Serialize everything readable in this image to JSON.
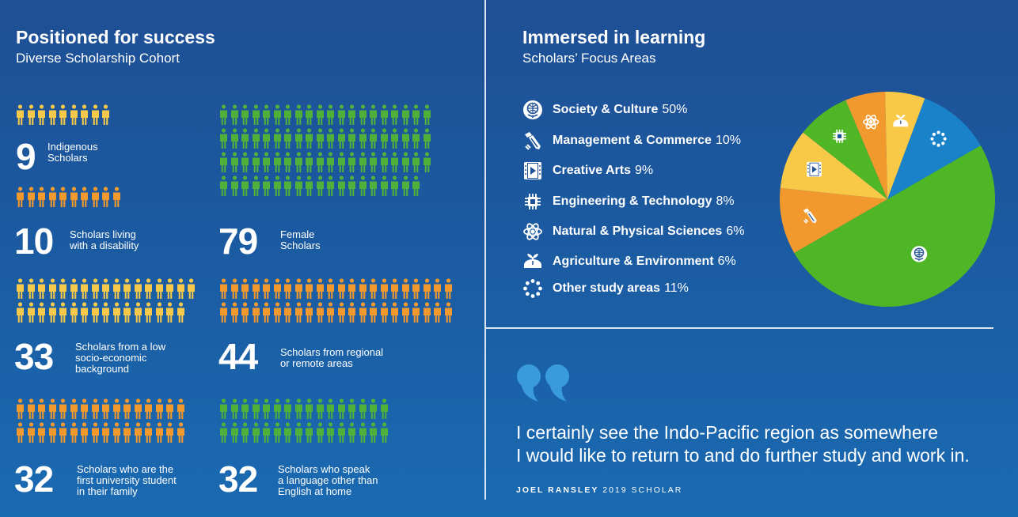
{
  "left_panel": {
    "title": "Positioned for success",
    "subtitle": "Diverse Scholarship Cohort",
    "stats": [
      {
        "number": "9",
        "label_line1": "Indigenous",
        "label_line2": "Scholars",
        "label_line3": "",
        "count": 9,
        "color": "#f6c94a"
      },
      {
        "number": "10",
        "label_line1": "Scholars living",
        "label_line2": "with a disability",
        "label_line3": "",
        "count": 10,
        "color": "#f2992e"
      },
      {
        "number": "79",
        "label_line1": "Female",
        "label_line2": "Scholars",
        "label_line3": "",
        "count": 79,
        "color": "#4fb03a"
      },
      {
        "number": "33",
        "label_line1": "Scholars from a low",
        "label_line2": "socio-economic",
        "label_line3": "background",
        "count": 33,
        "color": "#f6c94a"
      },
      {
        "number": "44",
        "label_line1": "Scholars from regional",
        "label_line2": "or remote areas",
        "label_line3": "",
        "count": 44,
        "color": "#f2992e"
      },
      {
        "number": "32",
        "label_line1": "Scholars who are the",
        "label_line2": "first university student",
        "label_line3": "in their family",
        "count": 32,
        "color": "#f2992e"
      },
      {
        "number": "32",
        "label_line1": "Scholars who speak",
        "label_line2": "a language other than",
        "label_line3": "English at home",
        "count": 32,
        "color": "#4fb03a"
      }
    ]
  },
  "right_panel": {
    "title": "Immersed in learning",
    "subtitle": "Scholars’ Focus Areas",
    "legend": [
      {
        "name": "Society & Culture",
        "percent": "50%",
        "icon": "globe-icon"
      },
      {
        "name": "Management & Commerce",
        "percent": "10%",
        "icon": "pencil-icon"
      },
      {
        "name": "Creative Arts",
        "percent": "9%",
        "icon": "film-icon"
      },
      {
        "name": "Engineering & Technology",
        "percent": "8%",
        "icon": "chip-icon"
      },
      {
        "name": "Natural & Physical Sciences",
        "percent": "6%",
        "icon": "atom-icon"
      },
      {
        "name": "Agriculture & Environment",
        "percent": "6%",
        "icon": "plant-icon"
      },
      {
        "name": "Other study areas",
        "percent": "11%",
        "icon": "dots-circle-icon"
      }
    ]
  },
  "chart_data": {
    "type": "pie",
    "categories": [
      "Society & Culture",
      "Management & Commerce",
      "Creative Arts",
      "Engineering & Technology",
      "Natural & Physical Sciences",
      "Agriculture & Environment",
      "Other study areas"
    ],
    "values": [
      50,
      10,
      9,
      8,
      6,
      6,
      11
    ],
    "colors": [
      "#4fb626",
      "#f2992e",
      "#f8c847",
      "#4fb626",
      "#f2992e",
      "#f8c847",
      "#1a82c8"
    ]
  },
  "quote": {
    "line1": "I certainly see the Indo-Pacific region as somewhere",
    "line2": "I would like to return to and do further study and work in.",
    "author": "JOEL RANSLEY",
    "author_detail": "2019 SCHOLAR"
  }
}
